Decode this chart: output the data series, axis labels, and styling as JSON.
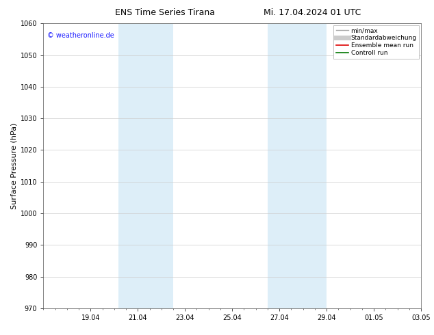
{
  "title": "ENS Time Series Tirana",
  "subtitle": "Mi. 17.04.2024 01 UTC",
  "ylabel": "Surface Pressure (hPa)",
  "ylim": [
    970,
    1060
  ],
  "yticks": [
    970,
    980,
    990,
    1000,
    1010,
    1020,
    1030,
    1040,
    1050,
    1060
  ],
  "xlim": [
    0,
    16
  ],
  "x_tick_labels": [
    "19.04",
    "21.04",
    "23.04",
    "25.04",
    "27.04",
    "29.04",
    "01.05",
    "03.05"
  ],
  "x_tick_offsets": [
    2,
    4,
    6,
    8,
    10,
    12,
    14,
    16
  ],
  "shaded_regions": [
    {
      "start": 3.17,
      "end": 5.5
    },
    {
      "start": 9.5,
      "end": 12.0
    }
  ],
  "shaded_color": "#ddeef8",
  "watermark": "© weatheronline.de",
  "watermark_color": "#1a1aff",
  "legend_entries": [
    {
      "label": "min/max",
      "color": "#aaaaaa",
      "lw": 1.0,
      "style": "solid"
    },
    {
      "label": "Standardabweichung",
      "color": "#cccccc",
      "lw": 5.0,
      "style": "solid"
    },
    {
      "label": "Ensemble mean run",
      "color": "#dd0000",
      "lw": 1.2,
      "style": "solid"
    },
    {
      "label": "Controll run",
      "color": "#007700",
      "lw": 1.2,
      "style": "solid"
    }
  ],
  "bg_color": "#ffffff",
  "grid_color": "#cccccc",
  "title_fontsize": 9,
  "subtitle_fontsize": 9,
  "ylabel_fontsize": 8,
  "tick_fontsize": 7,
  "watermark_fontsize": 7,
  "legend_fontsize": 6.5
}
